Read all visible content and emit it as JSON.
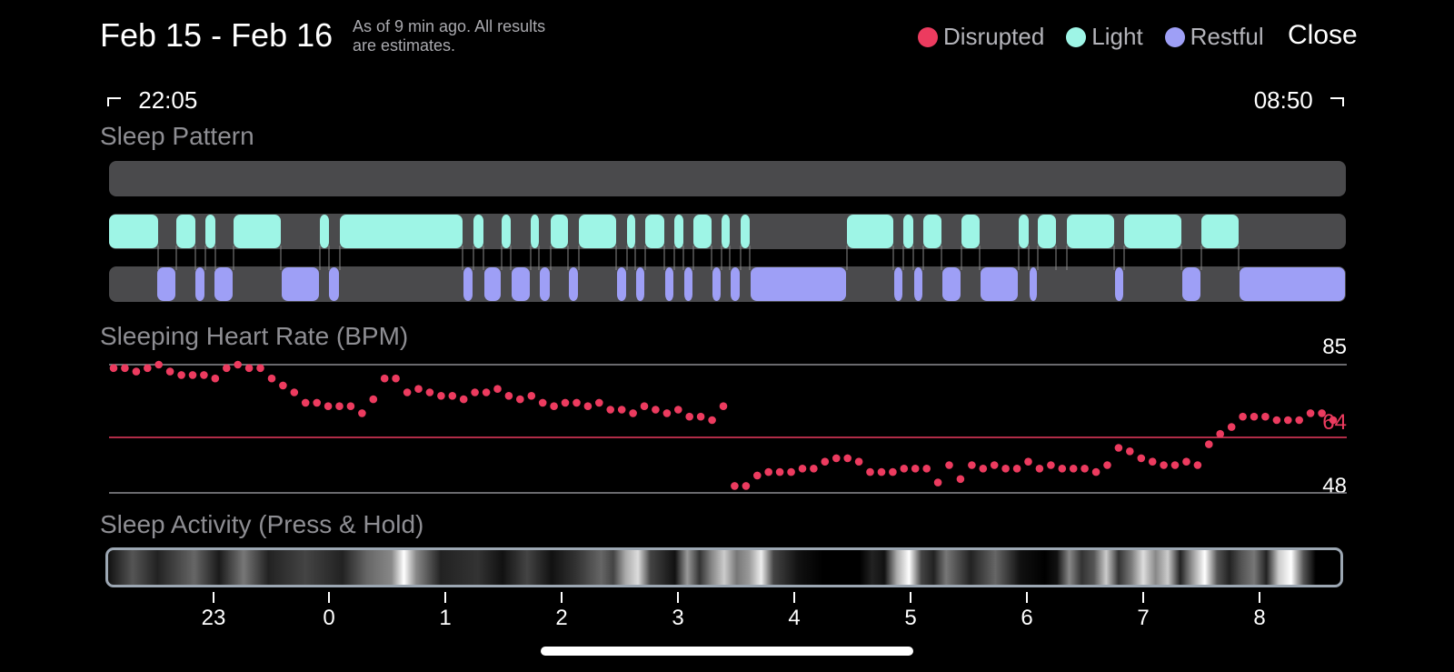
{
  "header": {
    "title": "Feb 15 - Feb 16",
    "subtitle_line1": "As of 9 min ago. All results",
    "subtitle_line2": "are estimates.",
    "close_label": "Close"
  },
  "legend": [
    {
      "label": "Disrupted",
      "color": "#ec3b5f"
    },
    {
      "label": "Light",
      "color": "#9ef5e6"
    },
    {
      "label": "Restful",
      "color": "#9e9ff6"
    }
  ],
  "time_range": {
    "start": "22:05",
    "end": "08:50"
  },
  "sections": {
    "sleep_pattern": "Sleep Pattern",
    "heart_rate": "Sleeping Heart Rate (BPM)",
    "activity": "Sleep Activity (Press & Hold)"
  },
  "heart_rate": {
    "max_label": "85",
    "avg_label": "64",
    "min_label": "48",
    "max": 85,
    "avg": 64,
    "min": 48
  },
  "hour_axis": [
    "23",
    "0",
    "1",
    "2",
    "3",
    "4",
    "5",
    "6",
    "7",
    "8"
  ],
  "chart_data": {
    "type": "scatter",
    "series": [
      {
        "values": [
          84,
          84,
          83,
          84,
          85,
          83,
          82,
          82,
          82,
          81,
          84,
          85,
          84,
          84,
          81,
          79,
          77,
          74,
          74,
          73,
          73,
          73,
          71,
          75,
          81,
          81,
          77,
          78,
          77,
          76,
          76,
          75,
          77,
          77,
          78,
          76,
          75,
          76,
          74,
          73,
          74,
          74,
          73,
          74,
          72,
          72,
          71,
          73,
          72,
          71,
          72,
          70,
          70,
          69,
          73,
          50,
          50,
          53,
          54,
          54,
          54,
          55,
          55,
          57,
          58,
          58,
          57,
          54,
          54,
          54,
          55,
          55,
          55,
          51,
          56,
          52,
          56,
          55,
          56,
          55,
          55,
          57,
          55,
          56,
          55,
          55,
          55,
          54,
          56,
          61,
          60,
          58,
          57,
          56,
          56,
          57,
          56,
          62,
          65,
          67,
          70,
          70,
          70,
          69,
          69,
          69,
          71,
          71,
          69
        ]
      }
    ],
    "ylim": [
      48,
      85
    ],
    "reference_lines": [
      85,
      64,
      48
    ]
  }
}
